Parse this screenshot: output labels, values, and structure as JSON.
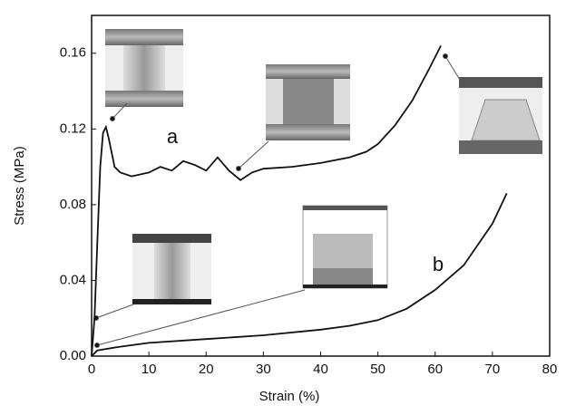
{
  "chart_data": {
    "type": "line",
    "x_label": "Strain (%)",
    "y_label": "Stress (MPa)",
    "xlim": [
      0,
      80
    ],
    "xticks": [
      0,
      10,
      20,
      30,
      40,
      50,
      60,
      70,
      80
    ],
    "ylim": [
      0,
      0.18
    ],
    "yticks": [
      {
        "value": 0,
        "label": "0.00"
      },
      0.04,
      0.08,
      0.12,
      0.16
    ],
    "series": [
      {
        "name": "a",
        "color": "#111111",
        "x": [
          0,
          0.5,
          1,
          1.5,
          2,
          2.5,
          3,
          4,
          5,
          7,
          10,
          12,
          14,
          16,
          18,
          20,
          22,
          24,
          26,
          28,
          30,
          35,
          40,
          45,
          48,
          50,
          53,
          56,
          59,
          61
        ],
        "values": [
          0,
          0.02,
          0.06,
          0.1,
          0.118,
          0.121,
          0.115,
          0.1,
          0.097,
          0.095,
          0.097,
          0.1,
          0.098,
          0.103,
          0.101,
          0.098,
          0.105,
          0.098,
          0.093,
          0.097,
          0.099,
          0.1,
          0.102,
          0.105,
          0.108,
          0.112,
          0.122,
          0.135,
          0.152,
          0.164
        ]
      },
      {
        "name": "b",
        "color": "#111111",
        "x": [
          0,
          1,
          5,
          10,
          20,
          30,
          40,
          45,
          50,
          55,
          60,
          65,
          70,
          72.5
        ],
        "values": [
          0,
          0.003,
          0.005,
          0.007,
          0.009,
          0.011,
          0.014,
          0.016,
          0.019,
          0.025,
          0.035,
          0.048,
          0.07,
          0.086
        ]
      }
    ]
  }
}
